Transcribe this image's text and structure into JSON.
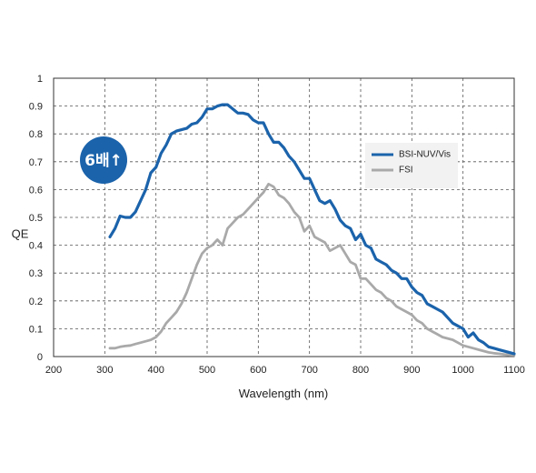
{
  "chart_data": {
    "type": "line",
    "xlabel": "Wavelength (nm)",
    "ylabel": "QE",
    "xlim": [
      200,
      1100
    ],
    "ylim": [
      0,
      1
    ],
    "x_ticks": [
      "200",
      "300",
      "400",
      "500",
      "600",
      "700",
      "800",
      "900",
      "1000",
      "1100"
    ],
    "y_ticks": [
      "0",
      "0.1",
      "0.2",
      "0.3",
      "0.4",
      "0.5",
      "0.6",
      "0.7",
      "0.8",
      "0.9",
      "1"
    ],
    "grid": true,
    "legend_position": "right",
    "annotation": "6배↑",
    "series": [
      {
        "name": "BSI-NUV/Vis",
        "color": "#1b63ab",
        "x": [
          310,
          320,
          330,
          340,
          350,
          360,
          370,
          380,
          390,
          400,
          410,
          420,
          430,
          440,
          450,
          460,
          470,
          480,
          490,
          500,
          510,
          520,
          530,
          540,
          550,
          560,
          570,
          580,
          590,
          600,
          610,
          620,
          630,
          640,
          650,
          660,
          670,
          680,
          690,
          700,
          710,
          720,
          730,
          740,
          750,
          760,
          770,
          780,
          790,
          800,
          810,
          820,
          830,
          840,
          850,
          860,
          870,
          880,
          890,
          900,
          910,
          920,
          930,
          940,
          950,
          960,
          970,
          980,
          990,
          1000,
          1010,
          1020,
          1030,
          1040,
          1050,
          1060,
          1070,
          1080,
          1090,
          1100
        ],
        "y": [
          0.43,
          0.46,
          0.505,
          0.5,
          0.5,
          0.52,
          0.56,
          0.6,
          0.66,
          0.68,
          0.73,
          0.76,
          0.8,
          0.81,
          0.815,
          0.82,
          0.835,
          0.84,
          0.86,
          0.89,
          0.89,
          0.9,
          0.905,
          0.905,
          0.89,
          0.875,
          0.875,
          0.87,
          0.85,
          0.84,
          0.84,
          0.8,
          0.77,
          0.77,
          0.75,
          0.72,
          0.7,
          0.67,
          0.64,
          0.64,
          0.6,
          0.56,
          0.55,
          0.56,
          0.53,
          0.49,
          0.47,
          0.46,
          0.42,
          0.44,
          0.4,
          0.39,
          0.35,
          0.34,
          0.33,
          0.31,
          0.3,
          0.28,
          0.28,
          0.25,
          0.23,
          0.22,
          0.19,
          0.18,
          0.17,
          0.16,
          0.14,
          0.12,
          0.11,
          0.1,
          0.07,
          0.085,
          0.06,
          0.05,
          0.035,
          0.03,
          0.025,
          0.02,
          0.015,
          0.01
        ]
      },
      {
        "name": "FSI",
        "color": "#a9a9a9",
        "x": [
          310,
          320,
          330,
          340,
          350,
          360,
          370,
          380,
          390,
          400,
          410,
          420,
          430,
          440,
          450,
          460,
          470,
          480,
          490,
          500,
          510,
          520,
          530,
          540,
          550,
          560,
          570,
          580,
          590,
          600,
          610,
          620,
          630,
          640,
          650,
          660,
          670,
          680,
          690,
          700,
          710,
          720,
          730,
          740,
          750,
          760,
          770,
          780,
          790,
          800,
          810,
          820,
          830,
          840,
          850,
          860,
          870,
          880,
          890,
          900,
          910,
          920,
          930,
          940,
          950,
          960,
          970,
          980,
          990,
          1000,
          1010,
          1020,
          1030,
          1040,
          1050,
          1060,
          1070,
          1080,
          1090,
          1100
        ],
        "y": [
          0.03,
          0.03,
          0.035,
          0.038,
          0.04,
          0.045,
          0.05,
          0.055,
          0.06,
          0.07,
          0.09,
          0.12,
          0.14,
          0.16,
          0.19,
          0.23,
          0.28,
          0.33,
          0.37,
          0.39,
          0.4,
          0.42,
          0.4,
          0.46,
          0.48,
          0.5,
          0.51,
          0.53,
          0.55,
          0.57,
          0.59,
          0.62,
          0.61,
          0.58,
          0.57,
          0.55,
          0.52,
          0.5,
          0.45,
          0.47,
          0.43,
          0.42,
          0.41,
          0.38,
          0.39,
          0.4,
          0.37,
          0.34,
          0.33,
          0.28,
          0.28,
          0.26,
          0.24,
          0.23,
          0.21,
          0.2,
          0.18,
          0.17,
          0.16,
          0.15,
          0.13,
          0.12,
          0.1,
          0.09,
          0.08,
          0.07,
          0.065,
          0.06,
          0.05,
          0.04,
          0.035,
          0.03,
          0.025,
          0.02,
          0.015,
          0.012,
          0.01,
          0.008,
          0.006,
          0.005
        ]
      }
    ]
  }
}
